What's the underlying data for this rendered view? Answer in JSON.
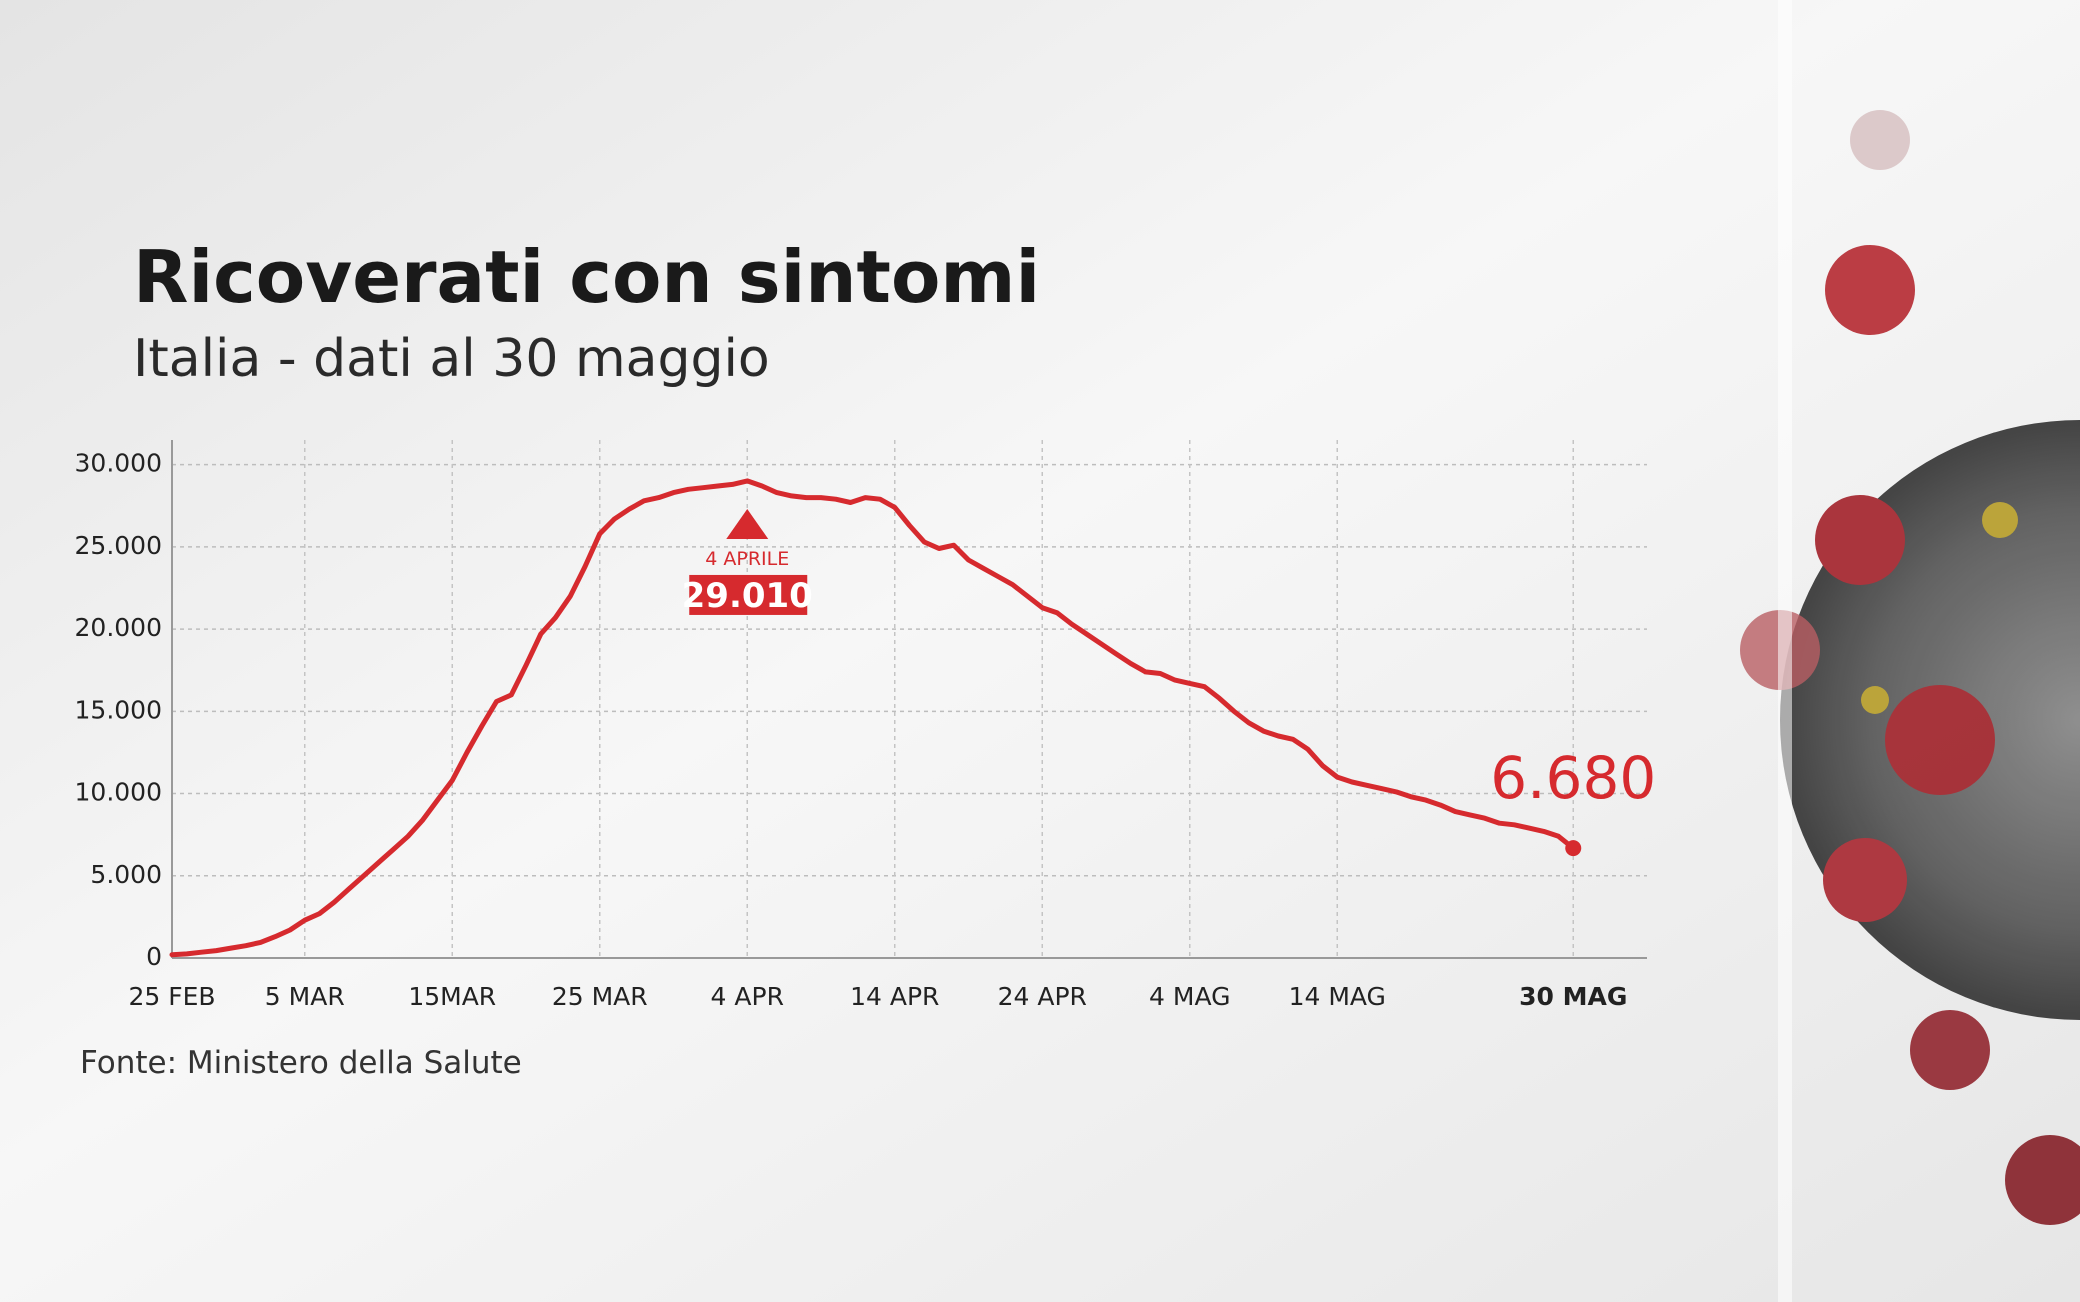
{
  "chart_data": {
    "type": "line",
    "title": "Ricoverati con sintomi",
    "subtitle": "Italia - dati al 30 maggio",
    "source": "Fonte: Ministero della Salute",
    "color": "#d62a2e",
    "x": [
      "02-25",
      "02-26",
      "02-27",
      "02-28",
      "02-29",
      "03-01",
      "03-02",
      "03-03",
      "03-04",
      "03-05",
      "03-06",
      "03-07",
      "03-08",
      "03-09",
      "03-10",
      "03-11",
      "03-12",
      "03-13",
      "03-14",
      "03-15",
      "03-16",
      "03-17",
      "03-18",
      "03-19",
      "03-20",
      "03-21",
      "03-22",
      "03-23",
      "03-24",
      "03-25",
      "03-26",
      "03-27",
      "03-28",
      "03-29",
      "03-30",
      "03-31",
      "04-01",
      "04-02",
      "04-03",
      "04-04",
      "04-05",
      "04-06",
      "04-07",
      "04-08",
      "04-09",
      "04-10",
      "04-11",
      "04-12",
      "04-13",
      "04-14",
      "04-15",
      "04-16",
      "04-17",
      "04-18",
      "04-19",
      "04-20",
      "04-21",
      "04-22",
      "04-23",
      "04-24",
      "04-25",
      "04-26",
      "04-27",
      "04-28",
      "04-29",
      "04-30",
      "05-01",
      "05-02",
      "05-03",
      "05-04",
      "05-05",
      "05-06",
      "05-07",
      "05-08",
      "05-09",
      "05-10",
      "05-11",
      "05-12",
      "05-13",
      "05-14",
      "05-15",
      "05-16",
      "05-17",
      "05-18",
      "05-19",
      "05-20",
      "05-21",
      "05-22",
      "05-23",
      "05-24",
      "05-25",
      "05-26",
      "05-27",
      "05-28",
      "05-29",
      "05-30"
    ],
    "values": [
      200,
      250,
      350,
      450,
      600,
      750,
      950,
      1300,
      1700,
      2300,
      2700,
      3400,
      4200,
      5000,
      5800,
      6600,
      7400,
      8400,
      9600,
      10800,
      12500,
      14100,
      15600,
      16000,
      17800,
      19700,
      20700,
      22000,
      23800,
      25800,
      26700,
      27300,
      27800,
      28000,
      28300,
      28500,
      28600,
      28700,
      28800,
      29010,
      28700,
      28300,
      28100,
      28000,
      28000,
      27900,
      27700,
      28000,
      27900,
      27400,
      26300,
      25300,
      24900,
      25100,
      24200,
      23700,
      23200,
      22700,
      22000,
      21300,
      21000,
      20300,
      19700,
      19100,
      18500,
      17900,
      17400,
      17300,
      16900,
      16700,
      16500,
      15800,
      15000,
      14300,
      13800,
      13500,
      13300,
      12700,
      11700,
      11000,
      10700,
      10500,
      10300,
      10100,
      9800,
      9600,
      9300,
      8900,
      8700,
      8500,
      8200,
      8100,
      7900,
      7700,
      7400,
      6680
    ],
    "value_labels": [
      null,
      null,
      null,
      null,
      null,
      null,
      null,
      null,
      null,
      null,
      null,
      null,
      null,
      null,
      null,
      null,
      null,
      null,
      null,
      null,
      null,
      null,
      null,
      null,
      null,
      null,
      null,
      null,
      null,
      null,
      null,
      null,
      null,
      null,
      null,
      null,
      null,
      null,
      null,
      "29.010",
      null,
      null,
      null,
      null,
      null,
      null,
      null,
      null,
      null,
      null,
      null,
      null,
      null,
      null,
      null,
      null,
      null,
      null,
      null,
      null,
      null,
      null,
      null,
      null,
      null,
      null,
      null,
      null,
      null,
      null,
      null,
      null,
      null,
      null,
      null,
      null,
      null,
      null,
      null,
      null,
      null,
      null,
      null,
      null,
      null,
      null,
      null,
      null,
      null,
      null,
      null,
      null,
      null,
      null,
      null,
      "6.680"
    ],
    "annotations": [
      {
        "x": "04-04",
        "text": "4 APRILE"
      }
    ],
    "xlim": [
      "02-25",
      "06-04"
    ],
    "xticks": [
      {
        "value": "02-25",
        "label": "25 FEB"
      },
      {
        "value": "03-05",
        "label": "5 MAR"
      },
      {
        "value": "03-15",
        "label": "15MAR"
      },
      {
        "value": "03-25",
        "label": "25 MAR"
      },
      {
        "value": "04-04",
        "label": "4 APR"
      },
      {
        "value": "04-14",
        "label": "14 APR"
      },
      {
        "value": "04-24",
        "label": "24 APR"
      },
      {
        "value": "05-04",
        "label": "4 MAG"
      },
      {
        "value": "05-14",
        "label": "14 MAG"
      },
      {
        "value": "05-30",
        "label": "30 MAG"
      }
    ],
    "ylim": [
      0,
      31500
    ],
    "yticks": [
      0,
      {
        "value": 5000,
        "label": "5.000"
      },
      {
        "value": 10000,
        "label": "10.000"
      },
      {
        "value": 15000,
        "label": "15.000"
      },
      {
        "value": 20000,
        "label": "20.000"
      },
      {
        "value": 25000,
        "label": "25.000"
      },
      {
        "value": 30000,
        "label": "30.000"
      }
    ],
    "grid": true
  }
}
